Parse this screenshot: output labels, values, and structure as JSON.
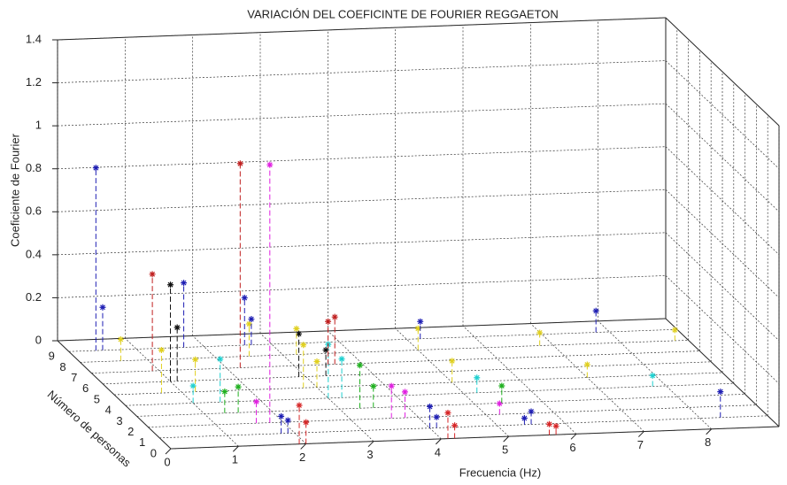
{
  "chart_data": {
    "type": "stem3",
    "title": "VARIACIÓN DEL COEFICINTE DE FOURIER REGGAETON",
    "xlabel": "Frecuencia (Hz)",
    "ylabel": "Número de personas",
    "zlabel": "Coeficiente de Fourier",
    "xlim": [
      0,
      9
    ],
    "ylim": [
      0,
      10
    ],
    "zlim": [
      0,
      1.4
    ],
    "xticks": [
      0,
      1,
      2,
      3,
      4,
      5,
      6,
      7,
      8
    ],
    "yticks": [
      0,
      1,
      2,
      3,
      4,
      5,
      6,
      7,
      8,
      9
    ],
    "zticks": [
      0,
      0.2,
      0.4,
      0.6,
      0.8,
      1,
      1.2,
      1.4
    ],
    "grid": true,
    "series": [
      {
        "y": 0,
        "color": "#d62728",
        "x": [
          1.9,
          2.0,
          4.1,
          4.2,
          5.6,
          5.7
        ],
        "values": [
          0.18,
          0.1,
          0.12,
          0.06,
          0.05,
          0.04
        ]
      },
      {
        "y": 1,
        "color": "#1f1fb4",
        "x": [
          1.8,
          1.9,
          4.0,
          4.1,
          5.4,
          5.5,
          8.3
        ],
        "values": [
          0.08,
          0.06,
          0.1,
          0.05,
          0.03,
          0.06,
          0.12
        ]
      },
      {
        "y": 2,
        "color": "#e020e0",
        "x": [
          1.6,
          1.8,
          3.6,
          3.8,
          5.2
        ],
        "values": [
          0.1,
          1.2,
          0.15,
          0.12,
          0.05
        ]
      },
      {
        "y": 3,
        "color": "#20b020",
        "x": [
          1.3,
          1.5,
          3.3,
          3.5,
          5.4
        ],
        "values": [
          0.1,
          0.12,
          0.2,
          0.1,
          0.08
        ]
      },
      {
        "y": 4,
        "color": "#20d0d0",
        "x": [
          1.0,
          1.4,
          3.0,
          3.2,
          5.2,
          7.8
        ],
        "values": [
          0.08,
          0.2,
          0.25,
          0.18,
          0.07,
          0.05
        ]
      },
      {
        "y": 5,
        "color": "#e0d020",
        "x": [
          0.7,
          1.2,
          2.8,
          3.0,
          5.0,
          7.0
        ],
        "values": [
          0.2,
          0.15,
          0.2,
          0.12,
          0.1,
          0.06
        ]
      },
      {
        "y": 6,
        "color": "#111111",
        "x": [
          1.0,
          1.1,
          2.9,
          3.3
        ],
        "values": [
          0.45,
          0.25,
          0.2,
          0.12
        ]
      },
      {
        "y": 7,
        "color": "#c02020",
        "x": [
          0.9,
          2.2,
          3.5,
          3.6
        ],
        "values": [
          0.45,
          0.95,
          0.2,
          0.22
        ]
      },
      {
        "y": 8,
        "color": "#e0d020",
        "x": [
          0.6,
          2.5,
          3.2,
          5.0,
          6.8,
          8.8
        ],
        "values": [
          0.1,
          0.15,
          0.12,
          0.1,
          0.06,
          0.05
        ]
      },
      {
        "y": 9,
        "color": "#1f1fb4",
        "x": [
          0.4,
          0.5,
          1.7,
          2.6,
          2.7,
          5.2,
          7.8
        ],
        "values": [
          0.85,
          0.2,
          0.3,
          0.22,
          0.12,
          0.08,
          0.1
        ]
      }
    ]
  }
}
